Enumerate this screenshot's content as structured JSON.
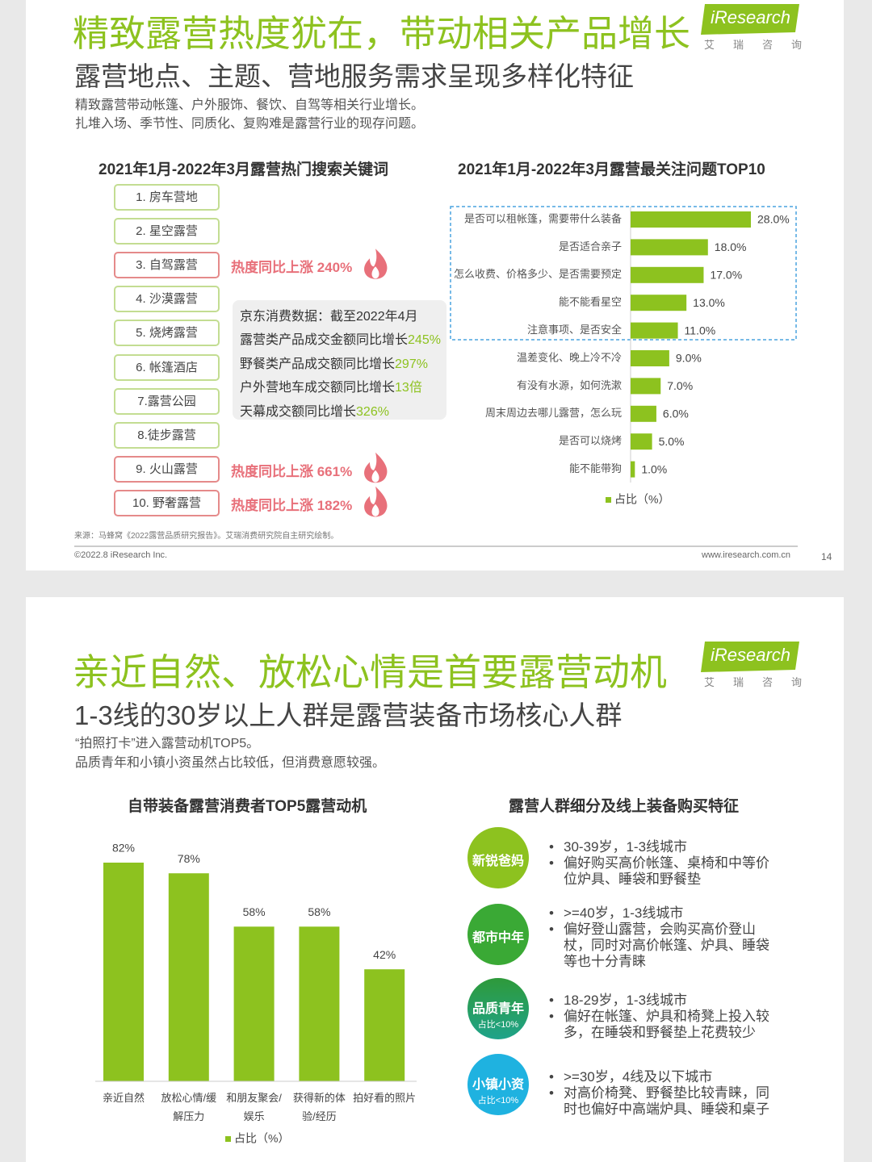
{
  "slides": [
    {
      "title": "精致露营热度犹在，带动相关产品增长",
      "subtitle": "露营地点、主题、营地服务需求呈现多样化特征",
      "notes": [
        "精致露营带动帐篷、户外服饰、餐饮、自驾等相关行业增长。",
        "扎堆入场、季节性、同质化、复购难是露营行业的现存问题。"
      ],
      "logo": "iResearch",
      "logo_sub": "艾瑞咨询",
      "keyword_panel": {
        "title": "2021年1月-2022年3月露营热门搜索关键词",
        "keywords": [
          {
            "label": "1. 房车营地"
          },
          {
            "label": "2. 星空露营"
          },
          {
            "label": "3. 自驾露营",
            "callout": "热度同比上涨 240%"
          },
          {
            "label": "4. 沙漠露营"
          },
          {
            "label": "5. 烧烤露营"
          },
          {
            "label": "6. 帐篷酒店"
          },
          {
            "label": "7.露营公园"
          },
          {
            "label": "8.徒步露营"
          },
          {
            "label": "9. 火山露营",
            "callout": "热度同比上涨 661%"
          },
          {
            "label": "10. 野奢露营",
            "callout": "热度同比上涨 182%"
          }
        ]
      },
      "jd_box": {
        "heading": "京东消费数据：截至2022年4月",
        "lines": [
          {
            "text": "露营类产品成交金额同比增长",
            "highlight": "245%"
          },
          {
            "text": "野餐类产品成交额同比增长",
            "highlight": "297%"
          },
          {
            "text": "户外营地车成交额同比增长",
            "highlight": "13倍"
          },
          {
            "text": "天幕成交额同比增长",
            "highlight": "326%"
          }
        ]
      },
      "source": "来源：马蜂窝《2022露营品质研究报告》。艾瑞消费研究院自主研究绘制。",
      "copyright": "©2022.8 iResearch Inc.",
      "website": "www.iresearch.com.cn",
      "page": 14
    },
    {
      "title": "亲近自然、放松心情是首要露营动机",
      "subtitle": "1-3线的30岁以上人群是露营装备市场核心人群",
      "notes": [
        "“拍照打卡”进入露营动机TOP5。",
        "品质青年和小镇小资虽然占比较低，但消费意愿较强。"
      ],
      "logo": "iResearch",
      "logo_sub": "艾瑞咨询",
      "segment_panel": {
        "title": "露营人群细分及线上装备购买特征",
        "segments": [
          {
            "name": "新锐爸妈",
            "bullets": [
              "30-39岁，1-3线城市",
              "偏好购买高价帐篷、桌椅和中等价位炉具、睡袋和野餐垫"
            ]
          },
          {
            "name": "都市中年",
            "bullets": [
              ">=40岁，1-3线城市",
              "偏好登山露营，会购买高价登山杖，同时对高价帐篷、炉具、睡袋等也十分青睐"
            ]
          },
          {
            "name": "品质青年",
            "share": "占比<10%",
            "bullets": [
              "18-29岁，1-3线城市",
              "偏好在帐篷、炉具和椅凳上投入较多，在睡袋和野餐垫上花费较少"
            ]
          },
          {
            "name": "小镇小资",
            "share": "占比<10%",
            "bullets": [
              ">=30岁，4线及以下城市",
              "对高价椅凳、野餐垫比较青睐，同时也偏好中高端炉具、睡袋和桌子"
            ]
          }
        ]
      }
    }
  ],
  "chart_data": [
    {
      "type": "bar",
      "orientation": "horizontal",
      "title": "2021年1月-2022年3月露营最关注问题TOP10",
      "categories": [
        "是否可以租帐篷，需要带什么装备",
        "是否适合亲子",
        "怎么收费、价格多少、是否需要预定",
        "能不能看星空",
        "注意事项、是否安全",
        "温差变化、晚上冷不冷",
        "有没有水源，如何洗漱",
        "周末周边去哪儿露营，怎么玩",
        "是否可以烧烤",
        "能不能带狗"
      ],
      "series": [
        {
          "name": "占比（%）",
          "color": "#8dc21f",
          "values": [
            28,
            18,
            17,
            13,
            11,
            9,
            7,
            6,
            5,
            1
          ],
          "value_labels": [
            "28.0%",
            "18.0%",
            "17.0%",
            "13.0%",
            "11.0%",
            "9.0%",
            "7.0%",
            "6.0%",
            "5.0%",
            "1.0%"
          ]
        }
      ]
    },
    {
      "type": "bar",
      "orientation": "vertical",
      "title": "自带装备露营消费者TOP5露营动机",
      "categories": [
        "亲近自然",
        "放松心情/缓解压力",
        "和朋友聚会/娱乐",
        "获得新的体验/经历",
        "拍好看的照片"
      ],
      "series": [
        {
          "name": "占比（%）",
          "color": "#8dc21f",
          "values": [
            82,
            78,
            58,
            58,
            42
          ],
          "value_labels": [
            "82%",
            "78%",
            "58%",
            "58%",
            "42%"
          ]
        }
      ]
    }
  ]
}
